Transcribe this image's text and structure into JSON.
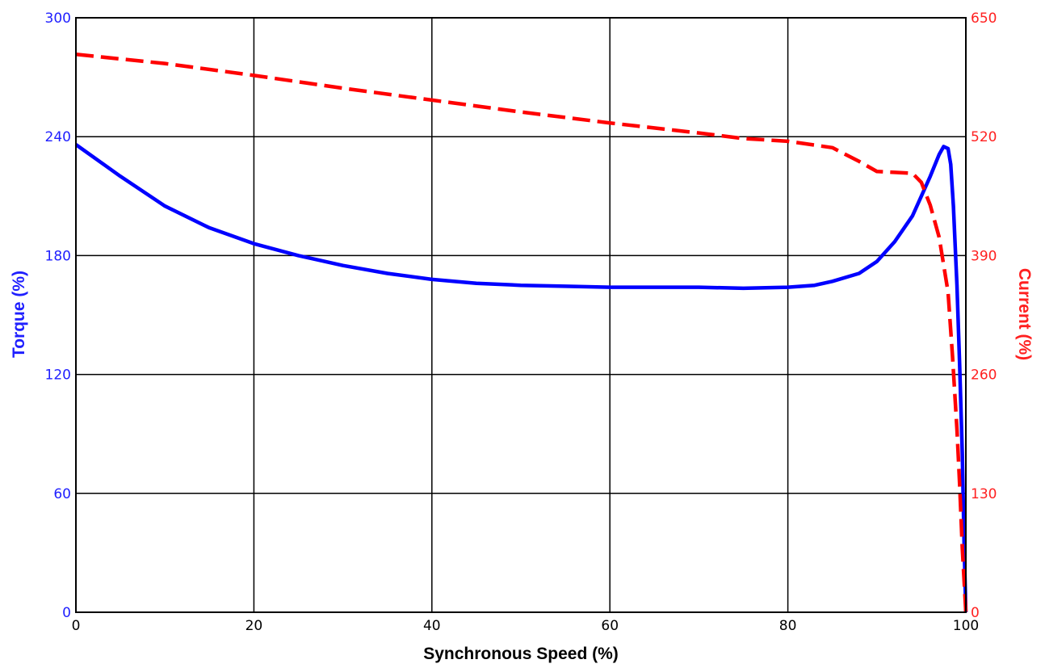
{
  "chart_data": {
    "type": "line",
    "xlabel": "Synchronous Speed (%)",
    "ylabel_left": "Torque (%)",
    "ylabel_right": "Current (%)",
    "xlim": [
      0,
      100
    ],
    "ylim_left": [
      0,
      300
    ],
    "ylim_right": [
      0,
      650
    ],
    "x_ticks": [
      "0",
      "20",
      "40",
      "60",
      "80",
      "100"
    ],
    "y_left_ticks": [
      "0",
      "60",
      "120",
      "180",
      "240",
      "300"
    ],
    "y_right_ticks": [
      "0",
      "130",
      "260",
      "390",
      "520",
      "650"
    ],
    "grid": true,
    "colors": {
      "torque": "#0000ff",
      "current": "#ff0000",
      "left_axis_text": "#1f1fff",
      "right_axis_text": "#ff2020",
      "grid": "#000000"
    },
    "series": [
      {
        "id": "torque",
        "axis": "left",
        "style": "solid",
        "x": [
          0,
          5,
          10,
          15,
          20,
          25,
          30,
          35,
          40,
          45,
          50,
          55,
          60,
          65,
          70,
          75,
          80,
          83,
          85,
          88,
          90,
          92,
          94,
          95,
          96,
          97,
          97.5,
          98,
          98.3,
          98.6,
          99,
          99.3,
          99.6,
          99.8,
          100
        ],
        "values": [
          236,
          220,
          205,
          194,
          186,
          180,
          175,
          171,
          168,
          166,
          165,
          164.5,
          164,
          164,
          164,
          163.5,
          164,
          165,
          167,
          171,
          177,
          187,
          200,
          210,
          220,
          231,
          235,
          234,
          226,
          205,
          165,
          125,
          80,
          35,
          0
        ]
      },
      {
        "id": "current",
        "axis": "right",
        "style": "dashed",
        "x": [
          0,
          10,
          20,
          30,
          40,
          50,
          60,
          70,
          75,
          80,
          85,
          88,
          90,
          92,
          94,
          95,
          96,
          97,
          98,
          98.5,
          99,
          99.3,
          99.6,
          100
        ],
        "values": [
          610,
          600,
          587,
          573,
          560,
          547,
          535,
          524,
          518,
          515,
          508,
          493,
          482,
          481,
          480,
          470,
          445,
          410,
          350,
          280,
          200,
          140,
          70,
          0
        ]
      }
    ]
  }
}
